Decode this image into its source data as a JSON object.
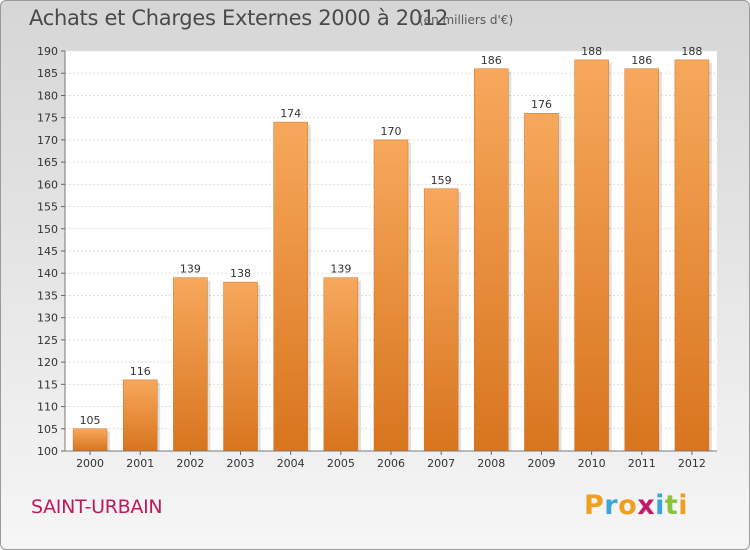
{
  "header": {
    "title": "Achats et Charges Externes 2000 à 2012",
    "subtitle": "(en milliers d'€)"
  },
  "footer": {
    "commune": "SAINT-URBAIN",
    "logo_text": "Proxiti",
    "logo_colors": [
      "#f0a020",
      "#3aa7d8",
      "#f0a020",
      "#c21b6c",
      "#3aa7d8",
      "#8ac43c",
      "#f0a020"
    ]
  },
  "chart_data": {
    "type": "bar",
    "title": "Achats et Charges Externes 2000 à 2012",
    "subtitle": "(en milliers d'€)",
    "categories": [
      "2000",
      "2001",
      "2002",
      "2003",
      "2004",
      "2005",
      "2006",
      "2007",
      "2008",
      "2009",
      "2010",
      "2011",
      "2012"
    ],
    "values": [
      105,
      116,
      139,
      138,
      174,
      139,
      170,
      159,
      186,
      176,
      188,
      186,
      188
    ],
    "ylim": [
      100,
      190
    ],
    "yticks": [
      100,
      105,
      110,
      115,
      120,
      125,
      130,
      135,
      140,
      145,
      150,
      155,
      160,
      165,
      170,
      175,
      180,
      185,
      190
    ],
    "grid": true,
    "bar_color_top": "#f7a85c",
    "bar_color_bottom": "#d8751e",
    "xlabel": "",
    "ylabel": ""
  }
}
